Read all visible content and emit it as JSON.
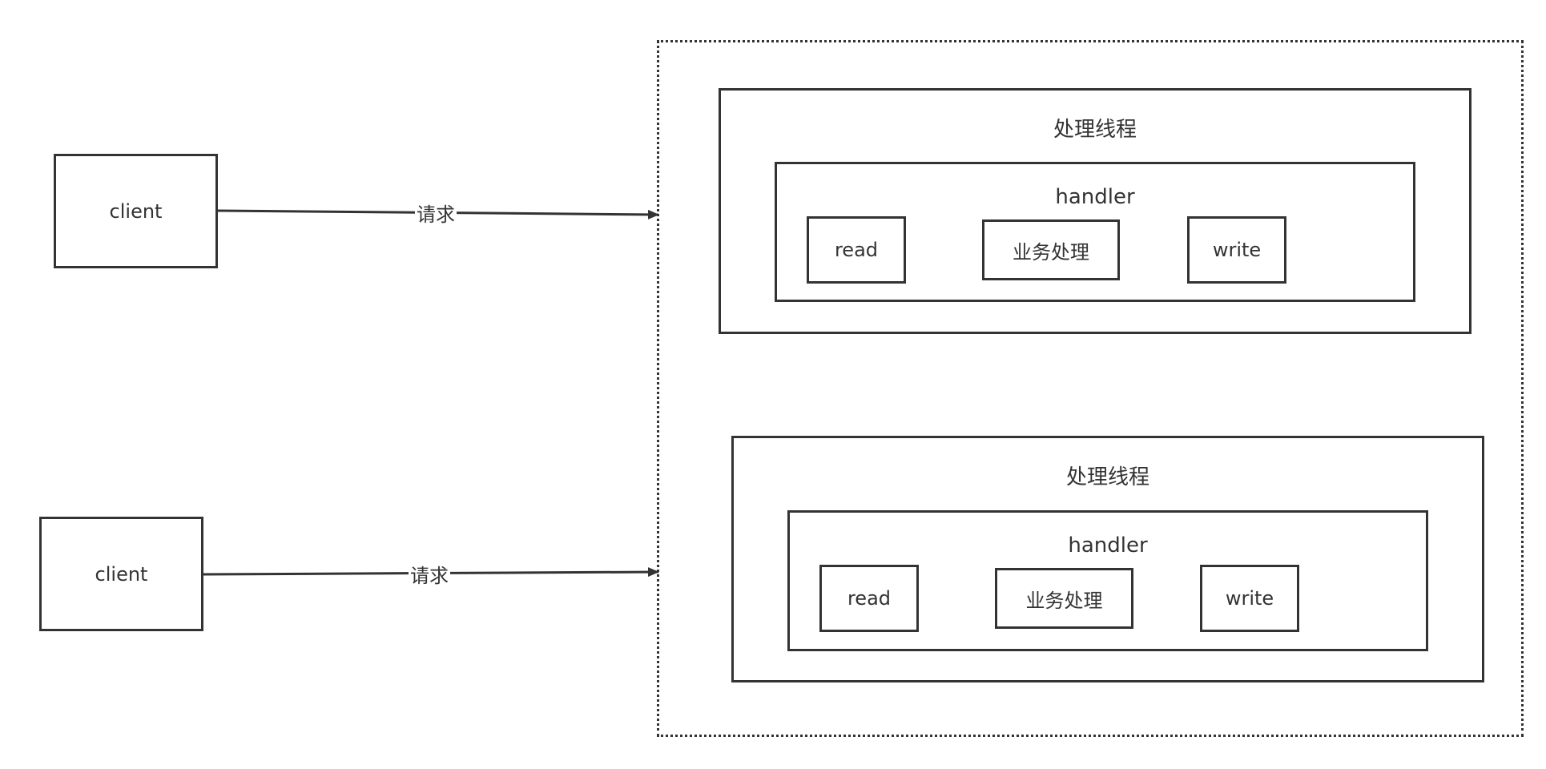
{
  "clients": [
    {
      "label": "client"
    },
    {
      "label": "client"
    }
  ],
  "edges": [
    {
      "label": "请求"
    },
    {
      "label": "请求"
    }
  ],
  "threads": [
    {
      "title": "处理线程",
      "handler": {
        "title": "handler",
        "steps": [
          {
            "label": "read"
          },
          {
            "label": "业务处理"
          },
          {
            "label": "write"
          }
        ]
      }
    },
    {
      "title": "处理线程",
      "handler": {
        "title": "handler",
        "steps": [
          {
            "label": "read"
          },
          {
            "label": "业务处理"
          },
          {
            "label": "write"
          }
        ]
      }
    }
  ]
}
